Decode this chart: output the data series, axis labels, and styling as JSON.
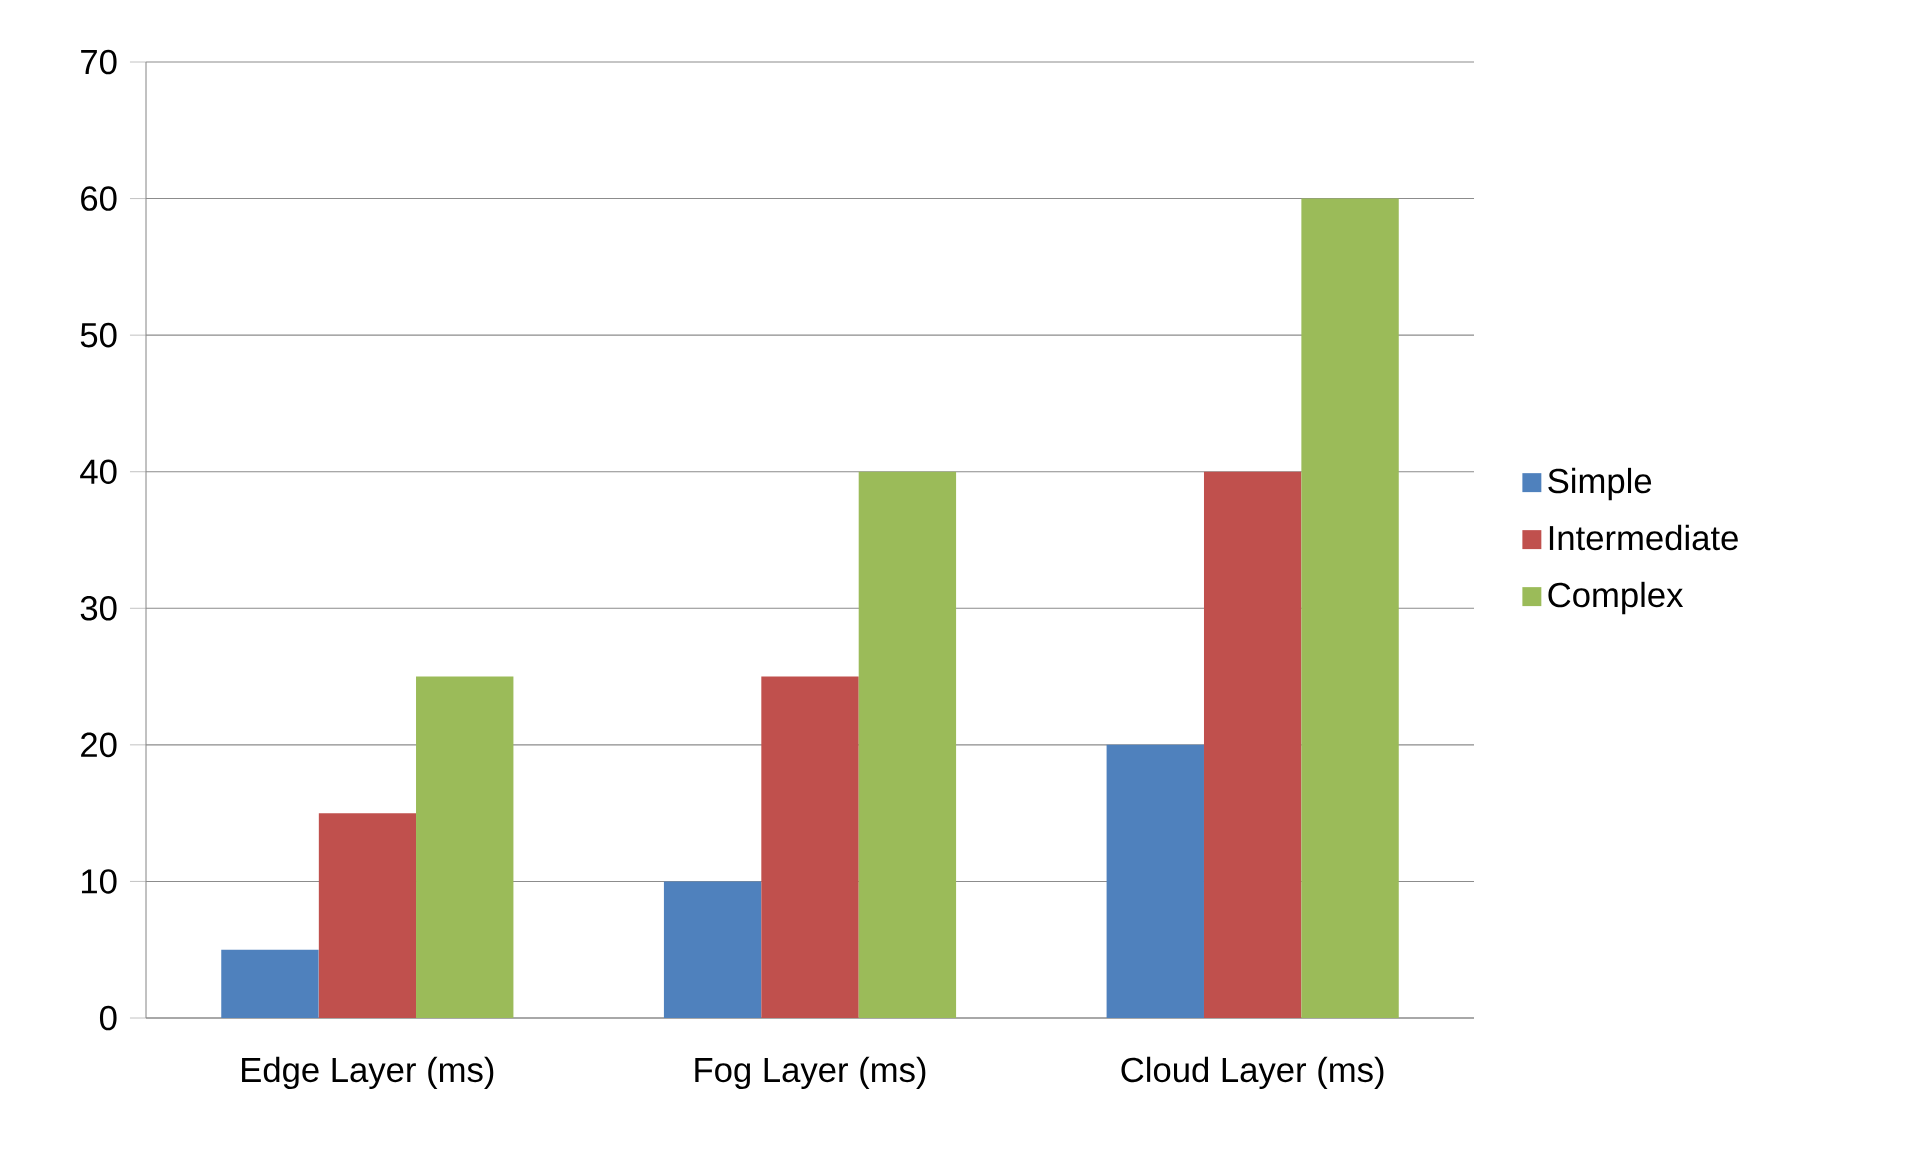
{
  "chart_data": {
    "type": "bar",
    "categories": [
      "Edge Layer (ms)",
      "Fog Layer (ms)",
      "Cloud Layer (ms)"
    ],
    "series": [
      {
        "name": "Simple",
        "color": "#4f81bd",
        "values": [
          5,
          10,
          20
        ]
      },
      {
        "name": "Intermediate",
        "color": "#c0504d",
        "values": [
          15,
          25,
          40
        ]
      },
      {
        "name": "Complex",
        "color": "#9bbb59",
        "values": [
          25,
          40,
          60
        ]
      }
    ],
    "ylim": [
      0,
      70
    ],
    "yticks": [
      0,
      10,
      20,
      30,
      40,
      50,
      60,
      70
    ],
    "grid": "y",
    "legend": "right"
  }
}
